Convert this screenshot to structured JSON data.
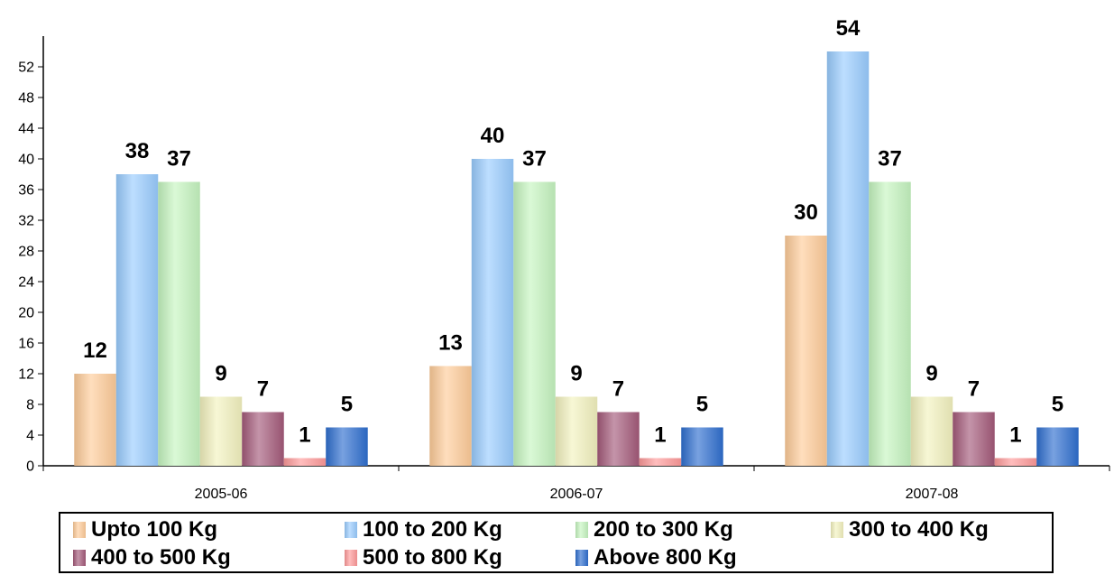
{
  "chart_data": {
    "type": "bar",
    "title": "",
    "xlabel": "",
    "ylabel": "",
    "ylim": [
      0,
      56
    ],
    "yticks": [
      0,
      4,
      8,
      12,
      16,
      20,
      24,
      28,
      32,
      36,
      40,
      44,
      48,
      52
    ],
    "categories": [
      "2005-06",
      "2006-07",
      "2007-08"
    ],
    "legend_position": "bottom",
    "series": [
      {
        "name": "Upto 100 Kg",
        "color": "#FFCC99",
        "values": [
          12,
          13,
          30
        ]
      },
      {
        "name": "100 to 200 Kg",
        "color": "#99CCFF",
        "values": [
          38,
          40,
          54
        ]
      },
      {
        "name": "200 to 300 Kg",
        "color": "#C6F5C0",
        "values": [
          37,
          37,
          37
        ]
      },
      {
        "name": "300 to 400 Kg",
        "color": "#F3F2BF",
        "values": [
          9,
          9,
          9
        ]
      },
      {
        "name": "400 to 500 Kg",
        "color": "#A45A7A",
        "values": [
          7,
          7,
          7
        ]
      },
      {
        "name": "500 to 800 Kg",
        "color": "#FF9A9A",
        "values": [
          1,
          1,
          1
        ]
      },
      {
        "name": "Above 800 Kg",
        "color": "#2F6FD0",
        "values": [
          5,
          5,
          5
        ]
      }
    ]
  }
}
